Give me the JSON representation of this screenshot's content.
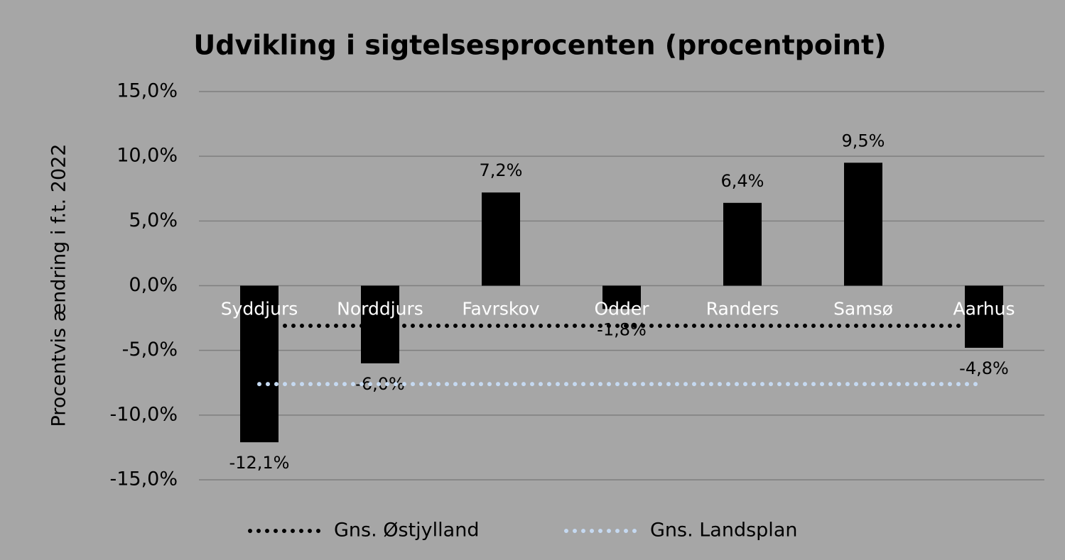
{
  "chart_data": {
    "type": "bar",
    "title": "Udvikling i sigtelsesprocenten (procentpoint)",
    "y_label": "Procentvis ændring i f.t. 2022",
    "categories": [
      "Syddjurs",
      "Norddjurs",
      "Favrskov",
      "Odder",
      "Randers",
      "Samsø",
      "Aarhus"
    ],
    "values": [
      -12.1,
      -6.0,
      7.2,
      -1.8,
      6.4,
      9.5,
      -4.8
    ],
    "value_labels": [
      "-12,1%",
      "-6,0%",
      "7,2%",
      "-1,8%",
      "6,4%",
      "9,5%",
      "-4,8%"
    ],
    "color": "#000000",
    "series": [
      {
        "name": "Gns. Østjylland",
        "color": "#000000",
        "values": [
          -3.1,
          -3.1,
          -3.1,
          -3.1,
          -3.1,
          -3.1,
          -3.1
        ]
      },
      {
        "name": "Gns. Landsplan",
        "color": "#c5d9f1",
        "values": [
          -7.6,
          -7.6,
          -7.6,
          -7.6,
          -7.6,
          -7.6,
          -7.6
        ]
      }
    ],
    "ylim": [
      -15,
      15
    ],
    "yticks": [
      {
        "value": -15,
        "label": "-15,0%"
      },
      {
        "value": -10,
        "label": "-10,0%"
      },
      {
        "value": -5,
        "label": "-5,0%"
      },
      {
        "value": 0,
        "label": "0,0%"
      },
      {
        "value": 5,
        "label": "5,0%"
      },
      {
        "value": 10,
        "label": "10,0%"
      },
      {
        "value": 15,
        "label": "15,0%"
      }
    ],
    "grid": true,
    "legend": "bottom"
  }
}
